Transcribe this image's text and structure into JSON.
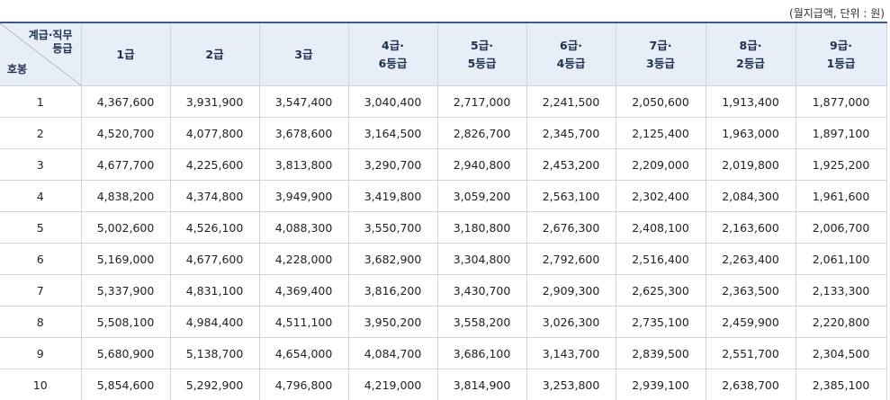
{
  "top_caption": "",
  "unit_note": "(월지급액, 단위 : 원)",
  "header": {
    "corner_top_line1": "계급·직무",
    "corner_top_line2": "등급",
    "corner_bottom": "호봉",
    "columns": [
      {
        "l1": "1급",
        "l2": ""
      },
      {
        "l1": "2급",
        "l2": ""
      },
      {
        "l1": "3급",
        "l2": ""
      },
      {
        "l1": "4급·",
        "l2": "6등급"
      },
      {
        "l1": "5급·",
        "l2": "5등급"
      },
      {
        "l1": "6급·",
        "l2": "4등급"
      },
      {
        "l1": "7급·",
        "l2": "3등급"
      },
      {
        "l1": "8급·",
        "l2": "2등급"
      },
      {
        "l1": "9급·",
        "l2": "1등급"
      }
    ]
  },
  "rows": [
    {
      "hobong": "1",
      "values": [
        "4,367,600",
        "3,931,900",
        "3,547,400",
        "3,040,400",
        "2,717,000",
        "2,241,500",
        "2,050,600",
        "1,913,400",
        "1,877,000"
      ]
    },
    {
      "hobong": "2",
      "values": [
        "4,520,700",
        "4,077,800",
        "3,678,600",
        "3,164,500",
        "2,826,700",
        "2,345,700",
        "2,125,400",
        "1,963,000",
        "1,897,100"
      ]
    },
    {
      "hobong": "3",
      "values": [
        "4,677,700",
        "4,225,600",
        "3,813,800",
        "3,290,700",
        "2,940,800",
        "2,453,200",
        "2,209,000",
        "2,019,800",
        "1,925,200"
      ]
    },
    {
      "hobong": "4",
      "values": [
        "4,838,200",
        "4,374,800",
        "3,949,900",
        "3,419,800",
        "3,059,200",
        "2,563,100",
        "2,302,400",
        "2,084,300",
        "1,961,600"
      ]
    },
    {
      "hobong": "5",
      "values": [
        "5,002,600",
        "4,526,100",
        "4,088,300",
        "3,550,700",
        "3,180,800",
        "2,676,300",
        "2,408,100",
        "2,163,600",
        "2,006,700"
      ]
    },
    {
      "hobong": "6",
      "values": [
        "5,169,000",
        "4,677,600",
        "4,228,000",
        "3,682,900",
        "3,304,800",
        "2,792,600",
        "2,516,400",
        "2,263,400",
        "2,061,100"
      ]
    },
    {
      "hobong": "7",
      "values": [
        "5,337,900",
        "4,831,100",
        "4,369,400",
        "3,816,200",
        "3,430,700",
        "2,909,300",
        "2,625,300",
        "2,363,500",
        "2,133,300"
      ]
    },
    {
      "hobong": "8",
      "values": [
        "5,508,100",
        "4,984,400",
        "4,511,100",
        "3,950,200",
        "3,558,200",
        "3,026,300",
        "2,735,100",
        "2,459,900",
        "2,220,800"
      ]
    },
    {
      "hobong": "9",
      "values": [
        "5,680,900",
        "5,138,700",
        "4,654,000",
        "4,084,700",
        "3,686,100",
        "3,143,700",
        "2,839,500",
        "2,551,700",
        "2,304,500"
      ]
    },
    {
      "hobong": "10",
      "values": [
        "5,854,600",
        "5,292,900",
        "4,796,800",
        "4,219,000",
        "3,814,900",
        "3,253,800",
        "2,939,100",
        "2,638,700",
        "2,385,100"
      ]
    }
  ]
}
